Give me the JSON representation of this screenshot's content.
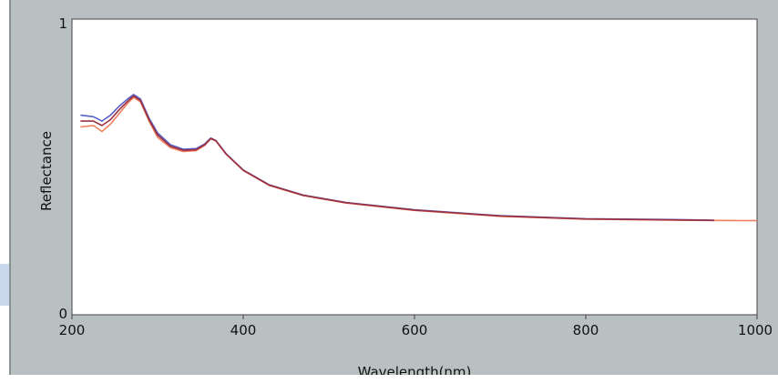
{
  "chart_data": {
    "type": "line",
    "xlabel": "Wavelength(nm)",
    "ylabel": "Reflectance",
    "xlim": [
      200,
      1000
    ],
    "ylim": [
      0,
      1
    ],
    "xticks": [
      "200",
      "400",
      "600",
      "800",
      "1000"
    ],
    "yticks": [
      "0",
      "1"
    ],
    "grid": false,
    "legend": "none",
    "series": [
      {
        "color": "#5a5fc8",
        "x": [
          210,
          225,
          235,
          245,
          255,
          265,
          272,
          280,
          290,
          300,
          315,
          330,
          345,
          355,
          362,
          368,
          380,
          400,
          430,
          470,
          520,
          600,
          700,
          800,
          900,
          950
        ],
        "y": [
          0.675,
          0.67,
          0.655,
          0.675,
          0.705,
          0.73,
          0.745,
          0.73,
          0.665,
          0.615,
          0.575,
          0.56,
          0.562,
          0.578,
          0.598,
          0.59,
          0.545,
          0.49,
          0.44,
          0.405,
          0.38,
          0.355,
          0.335,
          0.325,
          0.322,
          0.32
        ]
      },
      {
        "color": "#f08060",
        "x": [
          210,
          225,
          235,
          245,
          255,
          265,
          272,
          280,
          290,
          300,
          315,
          330,
          345,
          355,
          362,
          368,
          380,
          400,
          430,
          470,
          520,
          600,
          700,
          800,
          900,
          1000
        ],
        "y": [
          0.635,
          0.64,
          0.62,
          0.645,
          0.68,
          0.715,
          0.735,
          0.72,
          0.655,
          0.6,
          0.565,
          0.552,
          0.555,
          0.573,
          0.595,
          0.588,
          0.543,
          0.488,
          0.438,
          0.403,
          0.378,
          0.353,
          0.333,
          0.323,
          0.32,
          0.318
        ]
      },
      {
        "color": "#9a3040",
        "x": [
          210,
          225,
          235,
          245,
          255,
          265,
          272,
          280,
          290,
          300,
          315,
          330,
          345,
          355,
          362,
          368,
          380,
          400,
          430,
          470,
          520,
          600,
          700,
          800,
          900,
          950
        ],
        "y": [
          0.655,
          0.655,
          0.64,
          0.66,
          0.693,
          0.722,
          0.74,
          0.725,
          0.66,
          0.608,
          0.57,
          0.556,
          0.558,
          0.575,
          0.596,
          0.589,
          0.544,
          0.489,
          0.439,
          0.404,
          0.379,
          0.354,
          0.334,
          0.324,
          0.321,
          0.319
        ]
      }
    ]
  }
}
